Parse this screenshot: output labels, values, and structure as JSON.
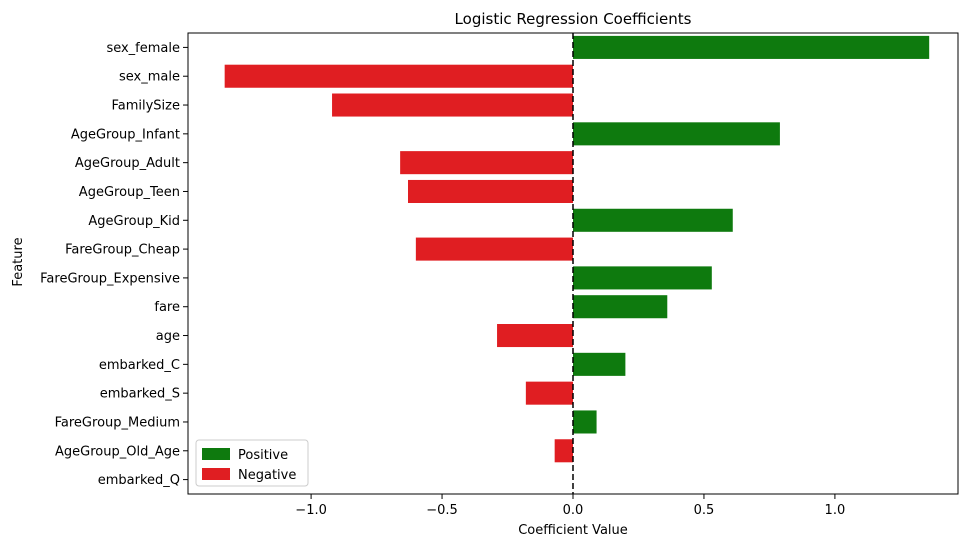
{
  "chart_data": {
    "type": "bar",
    "orientation": "horizontal",
    "title": "Logistic Regression Coefficients",
    "xlabel": "Coefficient Value",
    "ylabel": "Feature",
    "xlim": [
      -1.47,
      1.47
    ],
    "xticks": [
      -1.0,
      -0.5,
      0.0,
      0.5,
      1.0
    ],
    "xtick_labels": [
      "−1.0",
      "−0.5",
      "0.0",
      "0.5",
      "1.0"
    ],
    "reference_line": {
      "x": 0,
      "style": "dashed",
      "color": "#000000"
    },
    "grid": false,
    "categories": [
      "sex_female",
      "sex_male",
      "FamilySize",
      "AgeGroup_Infant",
      "AgeGroup_Adult",
      "AgeGroup_Teen",
      "AgeGroup_Kid",
      "FareGroup_Cheap",
      "FareGroup_Expensive",
      "fare",
      "age",
      "embarked_C",
      "embarked_S",
      "FareGroup_Medium",
      "AgeGroup_Old_Age",
      "embarked_Q"
    ],
    "values": [
      1.36,
      -1.33,
      -0.92,
      0.79,
      -0.66,
      -0.63,
      0.61,
      -0.6,
      0.53,
      0.36,
      -0.29,
      0.2,
      -0.18,
      0.09,
      -0.07,
      0.0
    ],
    "colors": {
      "positive": "#0e7a0e",
      "negative": "#e01e22"
    },
    "legend": {
      "position": "lower-left",
      "entries": [
        {
          "label": "Positive",
          "color": "#0e7a0e"
        },
        {
          "label": "Negative",
          "color": "#e01e22"
        }
      ]
    }
  }
}
